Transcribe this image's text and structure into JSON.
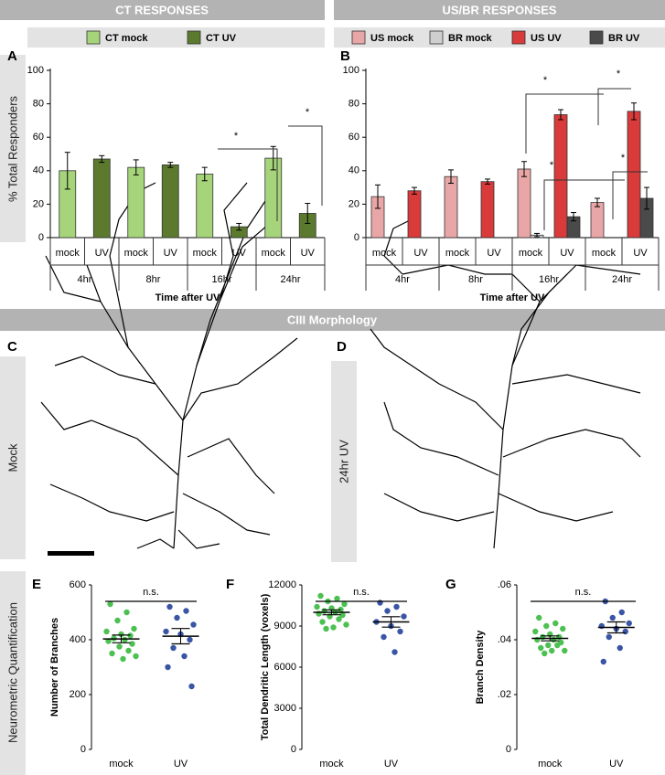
{
  "sections": {
    "ct": "CT RESPONSES",
    "usbr": "US/BR RESPONSES",
    "morphology": "CIII Morphology",
    "quant": "Neurometric Quantification"
  },
  "images": [
    {
      "panel": "C",
      "label": "Mock"
    },
    {
      "panel": "D",
      "label": "24hr UV"
    }
  ],
  "chart_data": [
    {
      "type": "bar",
      "panel": "A",
      "ylabel": "% Total Responders",
      "xlabel": "Time after UV",
      "categories": [
        "4hr",
        "8hr",
        "16hr",
        "24hr"
      ],
      "sub_categories": [
        "mock",
        "UV"
      ],
      "series": [
        {
          "name": "CT mock",
          "color": "#a6d47a",
          "values": [
            40,
            42,
            38,
            47.5
          ],
          "errors": [
            11,
            4.5,
            4,
            7
          ]
        },
        {
          "name": "CT UV",
          "color": "#5b7a2e",
          "values": [
            47,
            43.5,
            6.5,
            14.5
          ],
          "errors": [
            2,
            1.5,
            2,
            6
          ]
        }
      ],
      "ylim": [
        0,
        100
      ],
      "yticks": [
        0,
        20,
        40,
        60,
        80,
        100
      ],
      "annotations": [
        "*",
        "*"
      ]
    },
    {
      "type": "bar",
      "panel": "B",
      "xlabel": "Time after UV",
      "categories": [
        "4hr",
        "8hr",
        "16hr",
        "24hr"
      ],
      "sub_categories": [
        "mock",
        "UV"
      ],
      "series": [
        {
          "name": "US mock",
          "color": "#e8a6a6",
          "values": [
            24.5,
            36.5,
            41,
            21
          ],
          "errors": [
            7,
            4,
            4.5,
            2.5
          ]
        },
        {
          "name": "BR mock",
          "color": "#cfcfcf",
          "values": [
            0,
            0,
            1.5,
            0
          ],
          "errors": [
            0,
            0,
            1,
            0
          ]
        },
        {
          "name": "US UV",
          "color": "#d93a3a",
          "values": [
            28,
            33.5,
            73.5,
            75.5
          ],
          "errors": [
            2,
            1.5,
            3,
            5
          ]
        },
        {
          "name": "BR UV",
          "color": "#4a4a4a",
          "values": [
            0,
            0,
            12.5,
            23.5
          ],
          "errors": [
            0,
            0,
            2.5,
            6.5
          ]
        }
      ],
      "ylim": [
        0,
        100
      ],
      "yticks": [
        0,
        20,
        40,
        60,
        80,
        100
      ],
      "annotations": [
        "*",
        "*",
        "*",
        "*"
      ]
    },
    {
      "type": "dotplot",
      "panel": "E",
      "ylabel": "Number of Branches",
      "categories": [
        "mock",
        "UV"
      ],
      "colors": [
        "#4cc152",
        "#3a55a6"
      ],
      "values": [
        [
          530,
          500,
          470,
          440,
          430,
          420,
          415,
          405,
          400,
          395,
          385,
          375,
          360,
          350,
          340,
          330
        ],
        [
          520,
          505,
          480,
          455,
          430,
          420,
          400,
          370,
          340,
          300,
          230
        ]
      ],
      "means": [
        403,
        413
      ],
      "sems": [
        14,
        28
      ],
      "ylim": [
        0,
        600
      ],
      "yticks": [
        0,
        200,
        400,
        600
      ],
      "annotation": "n.s."
    },
    {
      "type": "dotplot",
      "panel": "F",
      "ylabel": "Total Dendritic Length (voxels)",
      "categories": [
        "mock",
        "UV"
      ],
      "colors": [
        "#4cc152",
        "#3a55a6"
      ],
      "values": [
        [
          11200,
          11000,
          10800,
          10600,
          10400,
          10300,
          10200,
          10100,
          10000,
          9900,
          9800,
          9700,
          9500,
          9300,
          9100,
          8900,
          8800
        ],
        [
          10700,
          10400,
          10100,
          9700,
          9300,
          9000,
          8600,
          8200,
          7100
        ]
      ],
      "means": [
        10000,
        9300
      ],
      "sems": [
        180,
        380
      ],
      "ylim": [
        0,
        12000
      ],
      "yticks": [
        0,
        3000,
        6000,
        9000,
        12000
      ],
      "annotation": "n.s."
    },
    {
      "type": "dotplot",
      "panel": "G",
      "ylabel": "Branch Density",
      "categories": [
        "mock",
        "UV"
      ],
      "colors": [
        "#4cc152",
        "#3a55a6"
      ],
      "values": [
        [
          0.048,
          0.046,
          0.045,
          0.044,
          0.043,
          0.042,
          0.041,
          0.041,
          0.04,
          0.04,
          0.039,
          0.038,
          0.038,
          0.037,
          0.036,
          0.036,
          0.035
        ],
        [
          0.054,
          0.05,
          0.048,
          0.046,
          0.045,
          0.044,
          0.043,
          0.041,
          0.037,
          0.032
        ]
      ],
      "means": [
        0.0405,
        0.0445
      ],
      "sems": [
        0.0009,
        0.002
      ],
      "ylim": [
        0,
        0.06
      ],
      "yticks": [
        0,
        {
          "value": 0.02,
          "label": ".02"
        },
        {
          "value": 0.04,
          "label": ".04"
        },
        {
          "value": 0.06,
          "label": ".06"
        }
      ],
      "annotation": "n.s."
    }
  ]
}
